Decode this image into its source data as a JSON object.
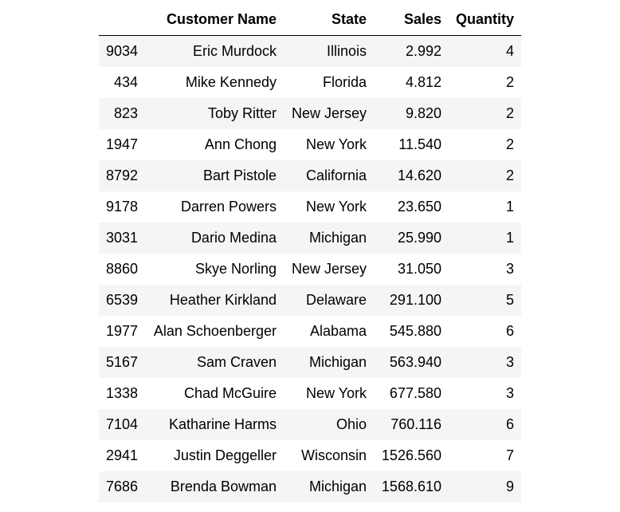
{
  "table": {
    "columns": [
      "",
      "Customer Name",
      "State",
      "Sales",
      "Quantity"
    ],
    "rows": [
      [
        "9034",
        "Eric Murdock",
        "Illinois",
        "2.992",
        "4"
      ],
      [
        "434",
        "Mike Kennedy",
        "Florida",
        "4.812",
        "2"
      ],
      [
        "823",
        "Toby Ritter",
        "New Jersey",
        "9.820",
        "2"
      ],
      [
        "1947",
        "Ann Chong",
        "New York",
        "11.540",
        "2"
      ],
      [
        "8792",
        "Bart Pistole",
        "California",
        "14.620",
        "2"
      ],
      [
        "9178",
        "Darren Powers",
        "New York",
        "23.650",
        "1"
      ],
      [
        "3031",
        "Dario Medina",
        "Michigan",
        "25.990",
        "1"
      ],
      [
        "8860",
        "Skye Norling",
        "New Jersey",
        "31.050",
        "3"
      ],
      [
        "6539",
        "Heather Kirkland",
        "Delaware",
        "291.100",
        "5"
      ],
      [
        "1977",
        "Alan Schoenberger",
        "Alabama",
        "545.880",
        "6"
      ],
      [
        "5167",
        "Sam Craven",
        "Michigan",
        "563.940",
        "3"
      ],
      [
        "1338",
        "Chad McGuire",
        "New York",
        "677.580",
        "3"
      ],
      [
        "7104",
        "Katharine Harms",
        "Ohio",
        "760.116",
        "6"
      ],
      [
        "2941",
        "Justin Deggeller",
        "Wisconsin",
        "1526.560",
        "7"
      ],
      [
        "7686",
        "Brenda Bowman",
        "Michigan",
        "1568.610",
        "9"
      ]
    ]
  }
}
